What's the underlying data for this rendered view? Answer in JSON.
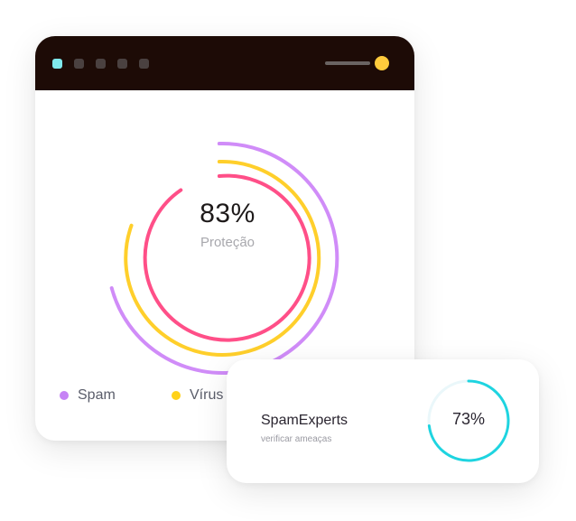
{
  "window": {
    "titlebar": {
      "dots": [
        "cyan",
        "grey",
        "grey",
        "grey",
        "grey"
      ],
      "colors": {
        "active_dot": "#7fe8ec",
        "inactive_dot": "#4a4140",
        "status_light": "#ffcb3c",
        "bar": "#1d0b06"
      }
    },
    "protection": {
      "value": "83%",
      "label": "Proteção"
    },
    "legend": [
      {
        "label": "Spam",
        "color": "#c683f5"
      },
      {
        "label": "Vírus",
        "color": "#ffd21a"
      }
    ],
    "ring_colors": {
      "spam": "#d08cf8",
      "virus": "#ffcf2b",
      "protection": "#ff4f88"
    }
  },
  "scan_card": {
    "title": "SpamExperts",
    "subtitle": "verificar ameaças",
    "value": "73%",
    "progress": 0.73,
    "ring_color": "#1ed4e0",
    "track_color": "#eaf7fa"
  }
}
